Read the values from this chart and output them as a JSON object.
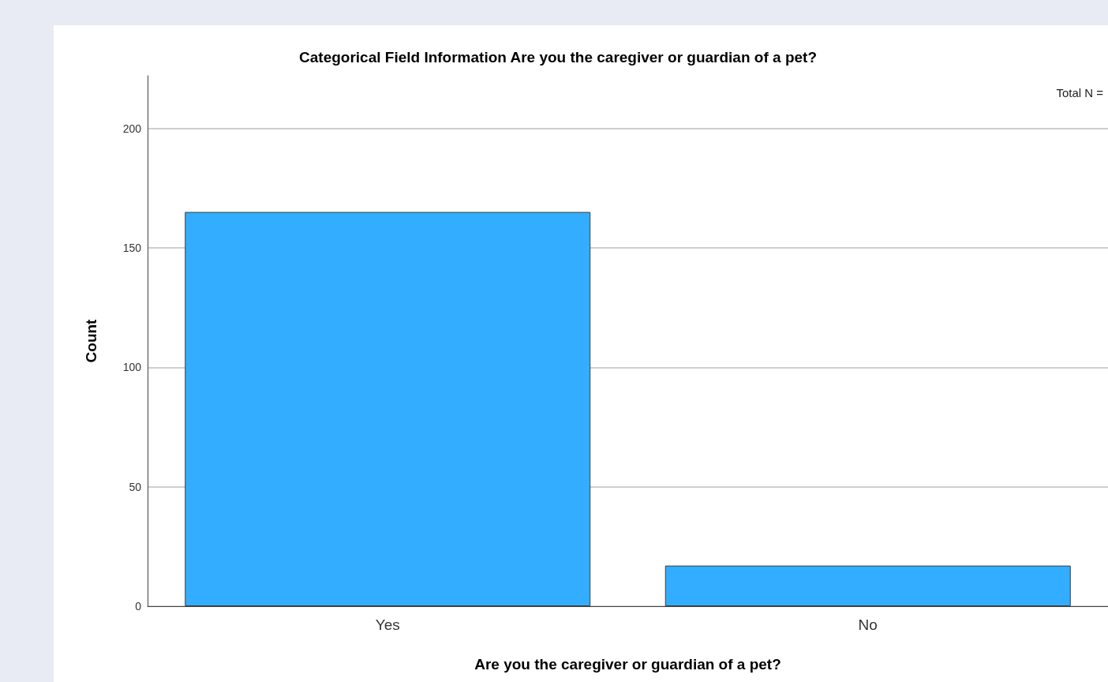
{
  "chart_data": {
    "type": "bar",
    "title": "Categorical Field Information Are you the caregiver or guardian of a pet?",
    "xlabel": "Are you the caregiver or guardian of a pet?",
    "ylabel": "Count",
    "categories": [
      "Yes",
      "No"
    ],
    "values": [
      165,
      17
    ],
    "color": "#33adff",
    "ylim": [
      0,
      222
    ],
    "yticks": [
      0,
      50,
      100,
      150,
      200
    ],
    "grid": "y",
    "annotations": [
      "Total N ="
    ]
  }
}
